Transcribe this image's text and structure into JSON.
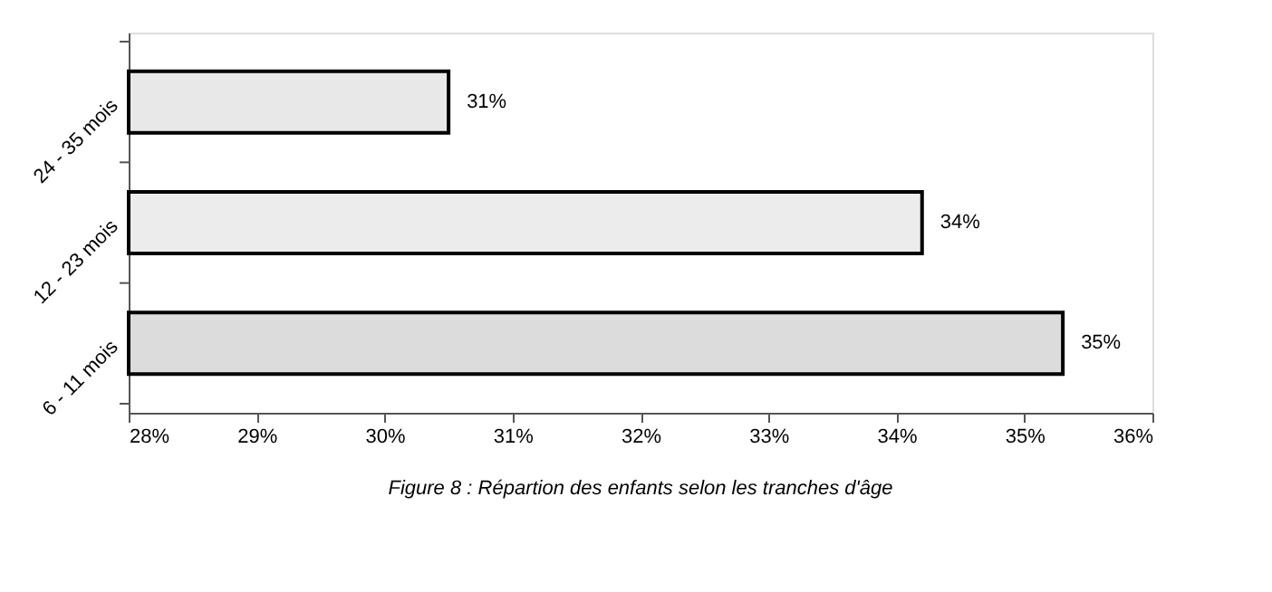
{
  "chart_data": {
    "type": "bar",
    "orientation": "horizontal",
    "title": "Figure 8 : Répartion des enfants selon les tranches d'âge",
    "categories": [
      "24 - 35 mois",
      "12 - 23 mois",
      "6 - 11 mois"
    ],
    "values": [
      30.5,
      34.2,
      35.3
    ],
    "colors": [
      "#e8e8e8",
      "#ececec",
      "#dcdcdc"
    ],
    "value_labels": [
      "31%",
      "34%",
      "35%"
    ],
    "xlim": [
      28,
      36
    ],
    "xticks": [
      {
        "value": 28,
        "label": "28%"
      },
      {
        "value": 29,
        "label": "29%"
      },
      {
        "value": 30,
        "label": "30%"
      },
      {
        "value": 31,
        "label": "31%"
      },
      {
        "value": 32,
        "label": "32%"
      },
      {
        "value": 33,
        "label": "33%"
      },
      {
        "value": 34,
        "label": "34%"
      },
      {
        "value": 35,
        "label": "35%"
      },
      {
        "value": 36,
        "label": "36%"
      }
    ],
    "grid": false
  }
}
